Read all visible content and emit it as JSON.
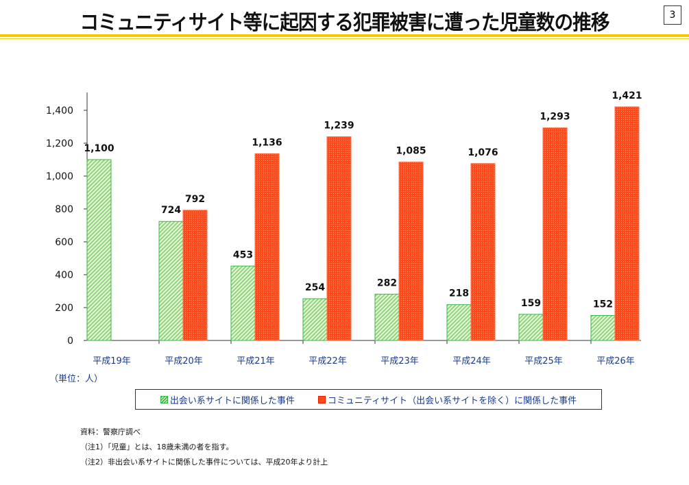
{
  "header": {
    "title": "コミュニティサイト等に起因する犯罪被害に遭った児童数の推移",
    "page_number": "3"
  },
  "chart_data": {
    "type": "bar",
    "title": "",
    "categories": [
      "平成19年",
      "平成20年",
      "平成21年",
      "平成22年",
      "平成23年",
      "平成24年",
      "平成25年",
      "平成26年"
    ],
    "series": [
      {
        "name": "出会い系サイトに関係した事件",
        "color": "#3bb54a",
        "values": [
          1100,
          724,
          453,
          254,
          282,
          218,
          159,
          152
        ],
        "labels": [
          "1,100",
          "724",
          "453",
          "254",
          "282",
          "218",
          "159",
          "152"
        ]
      },
      {
        "name": "コミュニティサイト（出会い系サイトを除く）に関係した事件",
        "color": "#ff4a1c",
        "values": [
          null,
          792,
          1136,
          1239,
          1085,
          1076,
          1293,
          1421
        ],
        "labels": [
          "",
          "792",
          "1,136",
          "1,239",
          "1,085",
          "1,076",
          "1,293",
          "1,421"
        ]
      }
    ],
    "yticks": [
      "0",
      "200",
      "400",
      "600",
      "800",
      "1,000",
      "1,200",
      "1,400"
    ],
    "ylim": [
      0,
      1500
    ],
    "grid": false,
    "unit_label": "（単位：人）",
    "legend": "bottom"
  },
  "notes": {
    "source": "資料：警察庁調べ",
    "note1": "（注1）「児童」とは、18歳未満の者を指す。",
    "note2": "（注2）非出会い系サイトに関係した事件については、平成20年より計上"
  }
}
